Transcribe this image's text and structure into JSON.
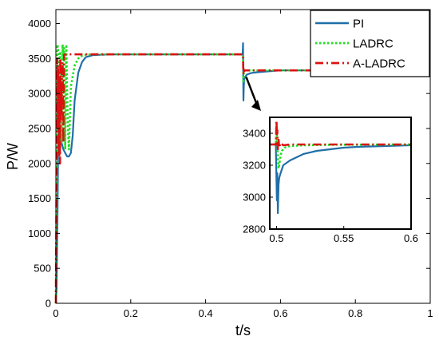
{
  "chart_data": [
    {
      "type": "line",
      "xlabel": "t/s",
      "ylabel": "P/W",
      "xlim": [
        0,
        1
      ],
      "ylim": [
        0,
        4200
      ],
      "xticks": [
        "0",
        "0.2",
        "0.4",
        "0.6",
        "0.8",
        "1"
      ],
      "yticks": [
        "0",
        "500",
        "1000",
        "1500",
        "2000",
        "2500",
        "3000",
        "3500",
        "4000"
      ],
      "legend_position": "top-right",
      "series": [
        {
          "name": "PI",
          "color": "#1f6fa8",
          "style": "solid",
          "x": [
            0,
            0.002,
            0.004,
            0.006,
            0.008,
            0.01,
            0.015,
            0.02,
            0.025,
            0.03,
            0.035,
            0.04,
            0.045,
            0.05,
            0.06,
            0.07,
            0.08,
            0.1,
            0.15,
            0.3,
            0.499,
            0.5,
            0.5005,
            0.501,
            0.502,
            0.503,
            0.505,
            0.51,
            0.52,
            0.53,
            0.55,
            0.6,
            0.8,
            1.0
          ],
          "y": [
            0,
            200,
            1100,
            2200,
            2700,
            2500,
            2300,
            2200,
            2150,
            2100,
            2100,
            2150,
            2400,
            2900,
            3300,
            3450,
            3520,
            3550,
            3560,
            3560,
            3560,
            3720,
            3250,
            2900,
            3100,
            3200,
            3230,
            3270,
            3290,
            3300,
            3310,
            3330,
            3330,
            3330
          ]
        },
        {
          "name": "LADRC",
          "color": "#22dd22",
          "style": "dotted",
          "x": [
            0,
            0.002,
            0.004,
            0.006,
            0.008,
            0.01,
            0.012,
            0.015,
            0.018,
            0.02,
            0.022,
            0.025,
            0.028,
            0.03,
            0.033,
            0.035,
            0.04,
            0.05,
            0.06,
            0.07,
            0.08,
            0.1,
            0.499,
            0.5,
            0.5005,
            0.501,
            0.502,
            0.503,
            0.505,
            0.51,
            0.52,
            0.6,
            1.0
          ],
          "y": [
            0,
            1500,
            3700,
            3650,
            3200,
            2800,
            3600,
            2300,
            3700,
            3500,
            3650,
            2200,
            3700,
            3000,
            2400,
            2200,
            3100,
            3400,
            3500,
            3540,
            3555,
            3560,
            3560,
            3550,
            3420,
            3150,
            3300,
            3320,
            3330,
            3330,
            3330,
            3330,
            3330
          ]
        },
        {
          "name": "A-LADRC",
          "color": "#dd1111",
          "style": "dashdot",
          "x": [
            0,
            0.002,
            0.004,
            0.005,
            0.006,
            0.007,
            0.008,
            0.009,
            0.01,
            0.011,
            0.012,
            0.013,
            0.014,
            0.015,
            0.016,
            0.018,
            0.02,
            0.022,
            0.025,
            0.03,
            0.1,
            0.499,
            0.5,
            0.5005,
            0.501,
            0.502,
            0.503,
            0.505,
            0.51,
            0.6,
            1.0
          ],
          "y": [
            0,
            2000,
            3500,
            2500,
            3400,
            2200,
            3300,
            2100,
            3200,
            2000,
            3500,
            2600,
            3100,
            2700,
            3300,
            3450,
            2300,
            3550,
            3560,
            3560,
            3560,
            3560,
            3560,
            3380,
            3290,
            3350,
            3320,
            3330,
            3330,
            3330,
            3330
          ]
        }
      ]
    },
    {
      "type": "line",
      "title": "",
      "xlim": [
        0.495,
        0.6
      ],
      "ylim": [
        2800,
        3500
      ],
      "xticks": [
        "0.5",
        "0.55",
        "0.6"
      ],
      "yticks": [
        "2800",
        "3000",
        "3200",
        "3400"
      ],
      "series": [
        {
          "name": "PI",
          "color": "#1f6fa8",
          "style": "solid",
          "x": [
            0.495,
            0.4995,
            0.5,
            0.5003,
            0.5006,
            0.501,
            0.5015,
            0.502,
            0.503,
            0.505,
            0.51,
            0.515,
            0.52,
            0.53,
            0.54,
            0.55,
            0.56,
            0.58,
            0.6
          ],
          "y": [
            3330,
            3330,
            3100,
            2980,
            3150,
            2900,
            3080,
            3120,
            3150,
            3200,
            3230,
            3250,
            3270,
            3290,
            3300,
            3310,
            3315,
            3320,
            3325
          ]
        },
        {
          "name": "LADRC",
          "color": "#22dd22",
          "style": "dotted",
          "x": [
            0.495,
            0.4995,
            0.5,
            0.5005,
            0.501,
            0.5015,
            0.502,
            0.503,
            0.504,
            0.506,
            0.51,
            0.52,
            0.54,
            0.6
          ],
          "y": [
            3330,
            3330,
            3430,
            3350,
            3250,
            3180,
            3200,
            3260,
            3290,
            3310,
            3320,
            3325,
            3328,
            3330
          ]
        },
        {
          "name": "A-LADRC",
          "color": "#dd1111",
          "style": "dashdot",
          "x": [
            0.495,
            0.4995,
            0.5,
            0.5003,
            0.5006,
            0.501,
            0.5015,
            0.502,
            0.503,
            0.505,
            0.51,
            0.6
          ],
          "y": [
            3330,
            3330,
            3480,
            3380,
            3420,
            3300,
            3360,
            3310,
            3340,
            3325,
            3330,
            3330
          ]
        }
      ]
    }
  ]
}
